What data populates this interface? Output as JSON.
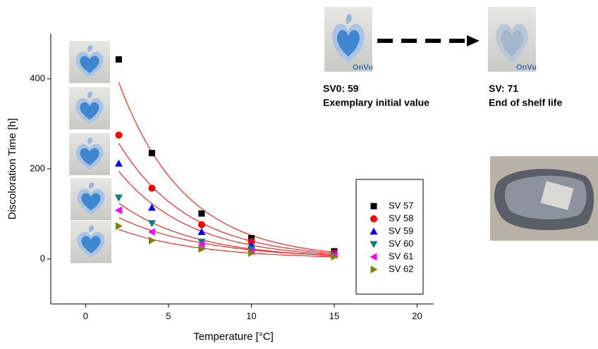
{
  "chart_data": {
    "type": "scatter",
    "x_label": "Temperature [°C]",
    "y_label": "Discoloration Time [h]",
    "xlim": [
      -2.1,
      21
    ],
    "ylim": [
      -100,
      500
    ],
    "xticks": [
      0,
      5,
      10,
      15,
      20
    ],
    "yticks": [
      0,
      200,
      400
    ],
    "fit_color": "#ff0000",
    "series": [
      {
        "name": "SV 57",
        "color": "#000000",
        "marker": "square",
        "x": [
          2,
          4,
          7,
          10,
          15
        ],
        "values": [
          443,
          235,
          101,
          46,
          17
        ]
      },
      {
        "name": "SV 58",
        "color": "#ff0000",
        "marker": "circle",
        "x": [
          2,
          4,
          7,
          10,
          15
        ],
        "values": [
          275,
          157,
          76,
          38,
          13
        ]
      },
      {
        "name": "SV 59",
        "color": "#0000ff",
        "marker": "triangle-up",
        "x": [
          2,
          4,
          7,
          10,
          15
        ],
        "values": [
          212,
          114,
          60,
          30,
          10
        ]
      },
      {
        "name": "SV 60",
        "color": "#008080",
        "marker": "triangle-down",
        "x": [
          2,
          4,
          7,
          10,
          15
        ],
        "values": [
          136,
          79,
          38,
          22,
          8
        ]
      },
      {
        "name": "SV 61",
        "color": "#ff00ff",
        "marker": "triangle-left",
        "x": [
          2,
          4,
          7,
          10,
          15
        ],
        "values": [
          108,
          60,
          32,
          17,
          9
        ]
      },
      {
        "name": "SV 62",
        "color": "#808000",
        "marker": "triangle-right",
        "x": [
          2,
          4,
          7,
          10,
          15
        ],
        "values": [
          73,
          41,
          22,
          13,
          5
        ]
      }
    ]
  },
  "annotations": {
    "start_value": "SV0: 59",
    "start_caption": "Exemplary initial value",
    "end_value": "SV: 71",
    "end_caption": "End of shelf life",
    "logo": "OnVu"
  }
}
